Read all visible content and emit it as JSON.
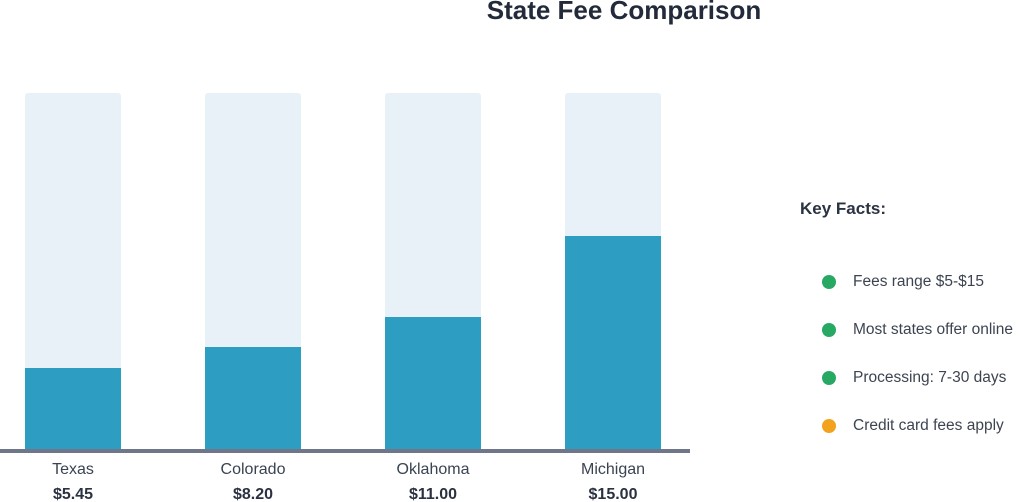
{
  "chart_data": {
    "type": "bar",
    "title": "State Fee Comparison",
    "categories": [
      "Texas",
      "Colorado",
      "Oklahoma",
      "Michigan"
    ],
    "values": [
      5.45,
      8.2,
      11.0,
      15.0
    ],
    "value_labels": [
      "$5.45",
      "$8.20",
      "$11.00",
      "$15.00"
    ],
    "xlabel": "",
    "ylabel": "",
    "grid": false,
    "legend": false,
    "bar_color": "#2d9ec2",
    "track_color": "#e7f1f7",
    "axis_color": "#6f7689",
    "bar_fill_fractions": [
      0.23,
      0.289,
      0.373,
      0.599
    ]
  },
  "key_facts": {
    "heading": "Key Facts:",
    "items": [
      {
        "label": "Fees range $5-$15",
        "bullet_color": "#27a964"
      },
      {
        "label": "Most states offer online",
        "bullet_color": "#27a964"
      },
      {
        "label": "Processing: 7-30 days",
        "bullet_color": "#27a964"
      },
      {
        "label": "Credit card fees apply",
        "bullet_color": "#f2a21c"
      }
    ]
  }
}
